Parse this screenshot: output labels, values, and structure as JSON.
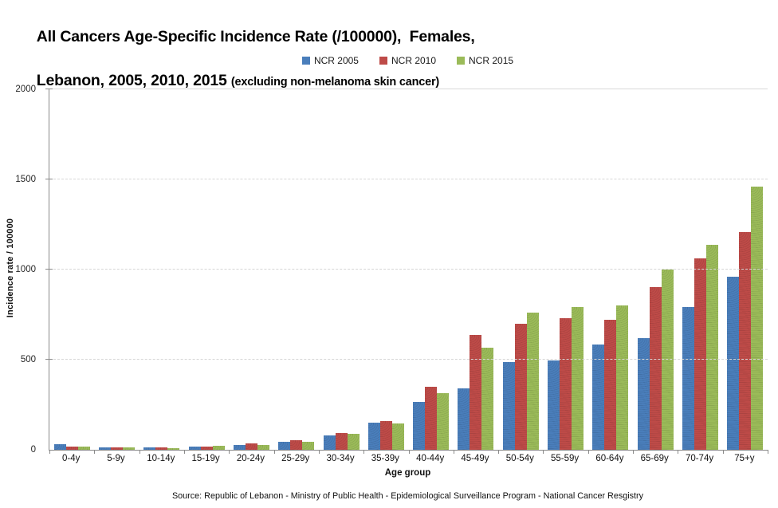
{
  "title": {
    "line1": "All Cancers Age-Specific Incidence Rate (/100000),  Females,",
    "line2_main": "Lebanon, 2005, 2010, 2015 ",
    "line2_small": "(excluding non-melanoma skin cancer)"
  },
  "source": "Source: Republic of Lebanon - Ministry of Public Health - Epidemiological Surveillance Program - National Cancer Resgistry",
  "chart_data": {
    "type": "bar",
    "title": "All Cancers Age-Specific Incidence Rate (/100000), Females, Lebanon, 2005, 2010, 2015 (excluding non-melanoma skin cancer)",
    "categories": [
      "0-4y",
      "5-9y",
      "10-14y",
      "15-19y",
      "20-24y",
      "25-29y",
      "30-34y",
      "35-39y",
      "40-44y",
      "45-49y",
      "50-54y",
      "55-59y",
      "60-64y",
      "65-69y",
      "70-74y",
      "75+y"
    ],
    "series": [
      {
        "name": "NCR 2005",
        "color": "#4A7EBB",
        "values": [
          33,
          13,
          12,
          19,
          28,
          46,
          81,
          150,
          264,
          340,
          486,
          496,
          586,
          621,
          791,
          961
        ]
      },
      {
        "name": "NCR 2010",
        "color": "#BE4B48",
        "values": [
          16,
          13,
          12,
          18,
          35,
          54,
          91,
          160,
          348,
          636,
          699,
          731,
          722,
          903,
          1064,
          1209
        ]
      },
      {
        "name": "NCR 2015",
        "color": "#9BBB59",
        "values": [
          19,
          13,
          11,
          24,
          28,
          46,
          87,
          146,
          313,
          568,
          762,
          790,
          802,
          1000,
          1137,
          1462
        ]
      }
    ],
    "xlabel": "Age group",
    "ylabel": "Incidence rate / 100000",
    "ylim": [
      0,
      2000
    ],
    "yticks": [
      0,
      500,
      1000,
      1500,
      2000
    ],
    "grid": true,
    "legend_position": "top-center"
  }
}
